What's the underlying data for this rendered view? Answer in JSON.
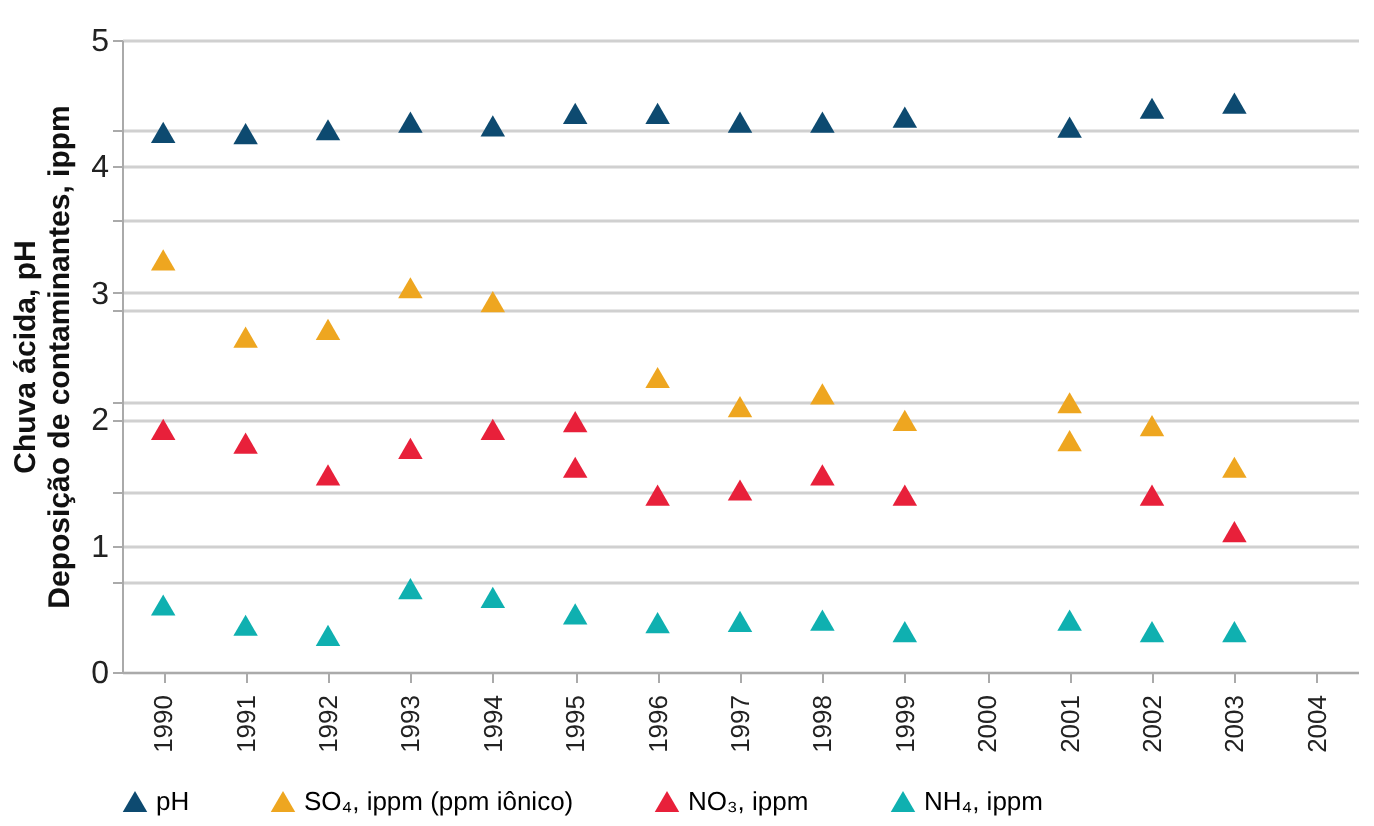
{
  "chart_data": {
    "type": "scatter",
    "ylabel": "Chuva ácida, pH\nDeposição de contaminantes, ippm",
    "series": [
      {
        "name": "pH",
        "color": "#0d4a70",
        "x": [
          1990,
          1991,
          1992,
          1993,
          1994,
          1995,
          1996,
          1997,
          1998,
          1999,
          2001,
          2002,
          2003
        ],
        "values": [
          4.27,
          4.26,
          4.29,
          4.35,
          4.32,
          4.42,
          4.42,
          4.35,
          4.35,
          4.39,
          4.31,
          4.46,
          4.5
        ]
      },
      {
        "name": "SO₄, ippm (ppm iônico)",
        "color": "#eea620",
        "x": [
          1990,
          1991,
          1992,
          1993,
          1994,
          1996,
          1997,
          1998,
          1999,
          2001,
          2001,
          2002,
          2003
        ],
        "values": [
          3.26,
          2.65,
          2.71,
          3.04,
          2.93,
          2.33,
          2.1,
          2.2,
          1.99,
          2.13,
          1.83,
          1.95,
          1.62
        ]
      },
      {
        "name": "NO₃, ippm",
        "color": "#e8203a",
        "x": [
          1990,
          1991,
          1992,
          1993,
          1994,
          1995,
          1995,
          1996,
          1997,
          1998,
          1999,
          2002,
          2003
        ],
        "values": [
          1.92,
          1.81,
          1.56,
          1.77,
          1.92,
          1.98,
          1.62,
          1.4,
          1.44,
          1.56,
          1.4,
          1.4,
          1.11
        ]
      },
      {
        "name": "NH₄, ippm",
        "color": "#0fb0b0",
        "x": [
          1990,
          1991,
          1992,
          1993,
          1994,
          1995,
          1996,
          1997,
          1998,
          1999,
          2001,
          2002,
          2003
        ],
        "values": [
          0.53,
          0.37,
          0.29,
          0.66,
          0.59,
          0.46,
          0.39,
          0.4,
          0.41,
          0.32,
          0.41,
          0.32,
          0.32
        ]
      }
    ],
    "xlim": [
      1989.5,
      2004.5
    ],
    "xticks": [
      1990,
      1991,
      1992,
      1993,
      1994,
      1995,
      1996,
      1997,
      1998,
      1999,
      2000,
      2001,
      2002,
      2003,
      2004
    ],
    "ylim": [
      0,
      5
    ],
    "yticks": [
      0,
      {
        "value": 0.71,
        "label": null
      },
      1,
      {
        "value": 1.43,
        "label": null
      },
      2,
      {
        "value": 2.14,
        "label": null
      },
      {
        "value": 2.86,
        "label": null
      },
      3,
      {
        "value": 3.57,
        "label": null
      },
      4,
      {
        "value": 4.29,
        "label": null
      },
      5
    ],
    "grid": "y",
    "marker": "triangle",
    "legend": "bottom"
  }
}
